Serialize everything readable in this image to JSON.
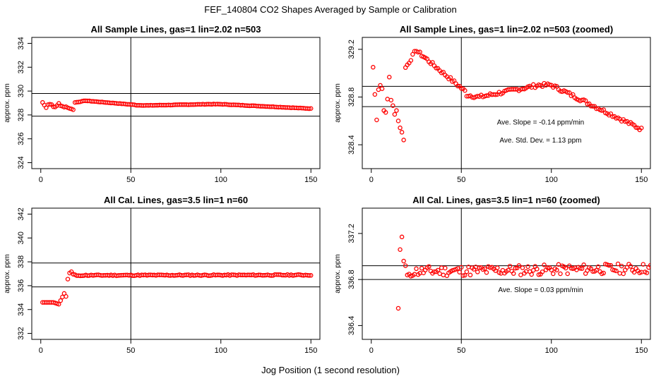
{
  "figure": {
    "suptitle": "FEF_140804  CO2 Shapes Averaged by Sample or Calibration",
    "xlabel": "Jog Position (1 second resolution)",
    "marker_color": "#ff0000"
  },
  "chart_data": [
    {
      "type": "scatter",
      "title": "All Sample Lines, gas=1 lin=2.02 n=503",
      "ylabel": "approx. ppm",
      "xlim": [
        -5,
        155
      ],
      "ylim": [
        323.5,
        334.5
      ],
      "xticks": [
        0,
        50,
        100,
        150
      ],
      "yticks": [
        324,
        326,
        328,
        330,
        332,
        334
      ],
      "hlines": [
        329.8,
        327.9
      ],
      "vline": 50,
      "annotations": [],
      "series_gen": {
        "kind": "sample",
        "n": 150,
        "start_x": 1
      }
    },
    {
      "type": "scatter",
      "title": "All Sample Lines, gas=1 lin=2.02 n=503 (zoomed)",
      "ylabel": "approx. ppm",
      "xlim": [
        -5,
        155
      ],
      "ylim": [
        328.2,
        329.3
      ],
      "xticks": [
        0,
        50,
        100,
        150
      ],
      "yticks": [
        328.4,
        328.8,
        329.2
      ],
      "hlines": [
        328.89,
        328.72
      ],
      "vline": 50,
      "annotations": [
        {
          "text": "Ave. Slope =  -0.14  ppm/min",
          "x": 94,
          "y": 328.57
        },
        {
          "text": "Ave. Std. Dev. =  1.13  ppm",
          "x": 94,
          "y": 328.42
        }
      ],
      "series_gen": {
        "kind": "sample",
        "n": 150,
        "start_x": 1
      }
    },
    {
      "type": "scatter",
      "title": "All Cal. Lines, gas=3.5 lin=1 n=60",
      "ylabel": "approx. ppm",
      "xlim": [
        -5,
        155
      ],
      "ylim": [
        331.5,
        342.5
      ],
      "xticks": [
        0,
        50,
        100,
        150
      ],
      "yticks": [
        332,
        334,
        336,
        338,
        340,
        342
      ],
      "hlines": [
        337.9,
        335.9
      ],
      "vline": 50,
      "annotations": [],
      "series_gen": {
        "kind": "cal",
        "n": 150,
        "start_x": 1
      }
    },
    {
      "type": "scatter",
      "title": "All Cal. Lines, gas=3.5 lin=1 n=60 (zoomed)",
      "ylabel": "approx. ppm",
      "xlim": [
        -5,
        155
      ],
      "ylim": [
        336.28,
        337.42
      ],
      "xticks": [
        0,
        50,
        100,
        150
      ],
      "yticks": [
        336.4,
        336.8,
        337.2
      ],
      "hlines": [
        336.92,
        336.8
      ],
      "vline": 50,
      "annotations": [
        {
          "text": "Ave. Slope =  0.03  ppm/min",
          "x": 94,
          "y": 336.69
        }
      ],
      "series_gen": {
        "kind": "cal",
        "n": 150,
        "start_x": 15
      }
    }
  ]
}
